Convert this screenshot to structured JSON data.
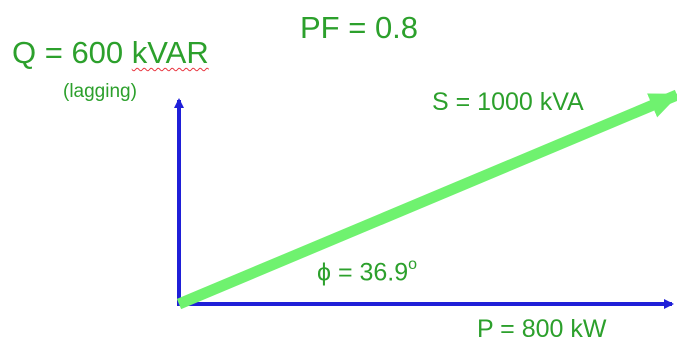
{
  "diagram": {
    "pf_label": "PF = 0.8",
    "q_prefix": "Q = 600 ",
    "q_unit": "kVAR",
    "q_note": "(lagging)",
    "s_label": "S = 1000 kVA",
    "phi_label": "ϕ = 36.9",
    "phi_degree": "o",
    "p_label": "P = 800 kW"
  },
  "colors": {
    "axes": "#1f1fd8",
    "s_vector": "#6ff26f",
    "text": "#2ca02c"
  }
}
